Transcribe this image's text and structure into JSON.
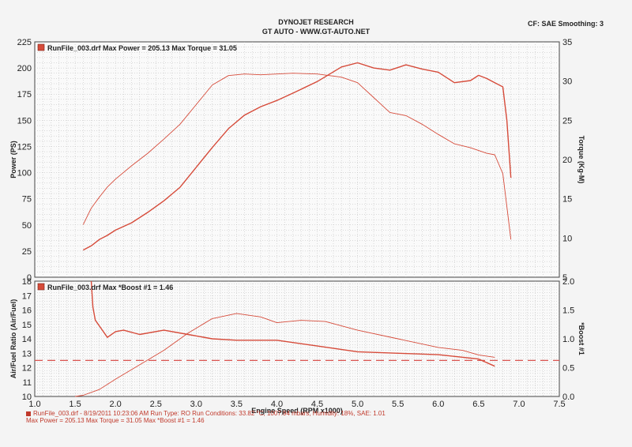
{
  "header": {
    "line1": "DYNOJET RESEARCH",
    "line2": "GT AUTO - WWW.GT-AUTO.NET",
    "cf": "CF: SAE  Smoothing: 3"
  },
  "footer": {
    "line1": "RunFile_003.drf - 8/19/2011 10:23:06 AM  Run Type: RO  Run Conditions: 33.82 °C, 1007.94 mbars,  Humidity: 18%, SAE: 1.01",
    "line2": "Max Power = 205.13  Max Torque = 31.05  Max *Boost #1 = 1.46"
  },
  "colors": {
    "line": "#d64b3a",
    "grid": "#b8b8b8",
    "afr_target": "#d9534f"
  },
  "chart_data": [
    {
      "type": "line",
      "legend": "RunFile_003.drf Max Power = 205.13     Max Torque = 31.05",
      "xlabel": "Engine Speed (RPM x1000)",
      "ylabel": "Power (PS)",
      "y2label": "Torque (Kg-M)",
      "xlim": [
        1.0,
        7.5
      ],
      "ylim": [
        0,
        225
      ],
      "y2lim": [
        5,
        35
      ],
      "x_ticks": [
        "1.0",
        "1.5",
        "2.0",
        "2.5",
        "3.0",
        "3.5",
        "4.0",
        "4.5",
        "5.0",
        "5.5",
        "6.0",
        "6.5",
        "7.0",
        "7.5"
      ],
      "y_ticks": [
        "0",
        "25",
        "50",
        "75",
        "100",
        "125",
        "150",
        "175",
        "200",
        "225"
      ],
      "y2_ticks": [
        "5",
        "10",
        "15",
        "20",
        "25",
        "30",
        "35"
      ],
      "grid": true,
      "series": [
        {
          "name": "Power",
          "axis": "y",
          "x": [
            1.6,
            1.7,
            1.8,
            1.9,
            2.0,
            2.2,
            2.4,
            2.6,
            2.8,
            3.0,
            3.2,
            3.4,
            3.6,
            3.8,
            4.0,
            4.2,
            4.5,
            4.8,
            5.0,
            5.2,
            5.4,
            5.6,
            5.8,
            6.0,
            6.2,
            6.4,
            6.5,
            6.6,
            6.7,
            6.8,
            6.85,
            6.9
          ],
          "values": [
            26,
            30,
            36,
            40,
            45,
            52,
            62,
            73,
            86,
            105,
            124,
            142,
            155,
            163,
            169,
            176,
            187,
            201,
            205,
            200,
            198,
            203,
            199,
            196,
            186,
            188,
            193,
            190,
            186,
            182,
            150,
            95
          ]
        },
        {
          "name": "Torque",
          "axis": "y2",
          "x": [
            1.6,
            1.7,
            1.8,
            1.9,
            2.0,
            2.2,
            2.4,
            2.6,
            2.8,
            3.0,
            3.2,
            3.4,
            3.6,
            3.8,
            4.0,
            4.2,
            4.5,
            4.8,
            5.0,
            5.2,
            5.4,
            5.6,
            5.8,
            6.0,
            6.2,
            6.4,
            6.6,
            6.7,
            6.8,
            6.85,
            6.9
          ],
          "values": [
            11.7,
            13.8,
            15.2,
            16.5,
            17.5,
            19.2,
            20.8,
            22.6,
            24.5,
            27.0,
            29.5,
            30.7,
            30.9,
            30.8,
            30.9,
            31.0,
            30.9,
            30.5,
            29.8,
            27.9,
            26.0,
            25.6,
            24.5,
            23.2,
            22.0,
            21.5,
            20.8,
            20.6,
            18.2,
            14.0,
            9.8
          ]
        }
      ]
    },
    {
      "type": "line",
      "legend": "RunFile_003.drf Max *Boost #1 = 1.46",
      "xlabel": "Engine Speed (RPM x1000)",
      "ylabel": "Air/Fuel Ratio (Air/Fuel)",
      "y2label": "*Boost #1",
      "xlim": [
        1.0,
        7.5
      ],
      "ylim": [
        10,
        18
      ],
      "y2lim": [
        0.0,
        2.0
      ],
      "x_ticks": [
        "1.0",
        "1.5",
        "2.0",
        "2.5",
        "3.0",
        "3.5",
        "4.0",
        "4.5",
        "5.0",
        "5.5",
        "6.0",
        "6.5",
        "7.0",
        "7.5"
      ],
      "y_ticks": [
        "10",
        "11",
        "12",
        "13",
        "14",
        "15",
        "16",
        "17",
        "18"
      ],
      "y2_ticks": [
        "0.0",
        "0.5",
        "1.0",
        "1.5",
        "2.0"
      ],
      "reference_line": 12.5,
      "grid": true,
      "series": [
        {
          "name": "AFR",
          "axis": "y",
          "x": [
            1.7,
            1.72,
            1.75,
            1.8,
            1.9,
            2.0,
            2.1,
            2.3,
            2.6,
            2.9,
            3.2,
            3.5,
            4.0,
            4.5,
            5.0,
            5.5,
            6.0,
            6.5,
            6.7
          ],
          "values": [
            18,
            16.2,
            15.3,
            14.9,
            14.1,
            14.5,
            14.6,
            14.3,
            14.6,
            14.3,
            14.0,
            13.9,
            13.9,
            13.5,
            13.1,
            13.0,
            12.9,
            12.6,
            12.1
          ]
        },
        {
          "name": "Boost",
          "axis": "y2",
          "x": [
            1.5,
            1.6,
            1.8,
            2.0,
            2.3,
            2.6,
            2.9,
            3.2,
            3.5,
            3.8,
            4.0,
            4.3,
            4.6,
            5.0,
            5.5,
            6.0,
            6.3,
            6.5,
            6.7
          ],
          "values": [
            0.0,
            0.02,
            0.12,
            0.3,
            0.55,
            0.8,
            1.1,
            1.35,
            1.44,
            1.38,
            1.28,
            1.32,
            1.3,
            1.15,
            1.0,
            0.85,
            0.8,
            0.72,
            0.68
          ]
        }
      ]
    }
  ]
}
